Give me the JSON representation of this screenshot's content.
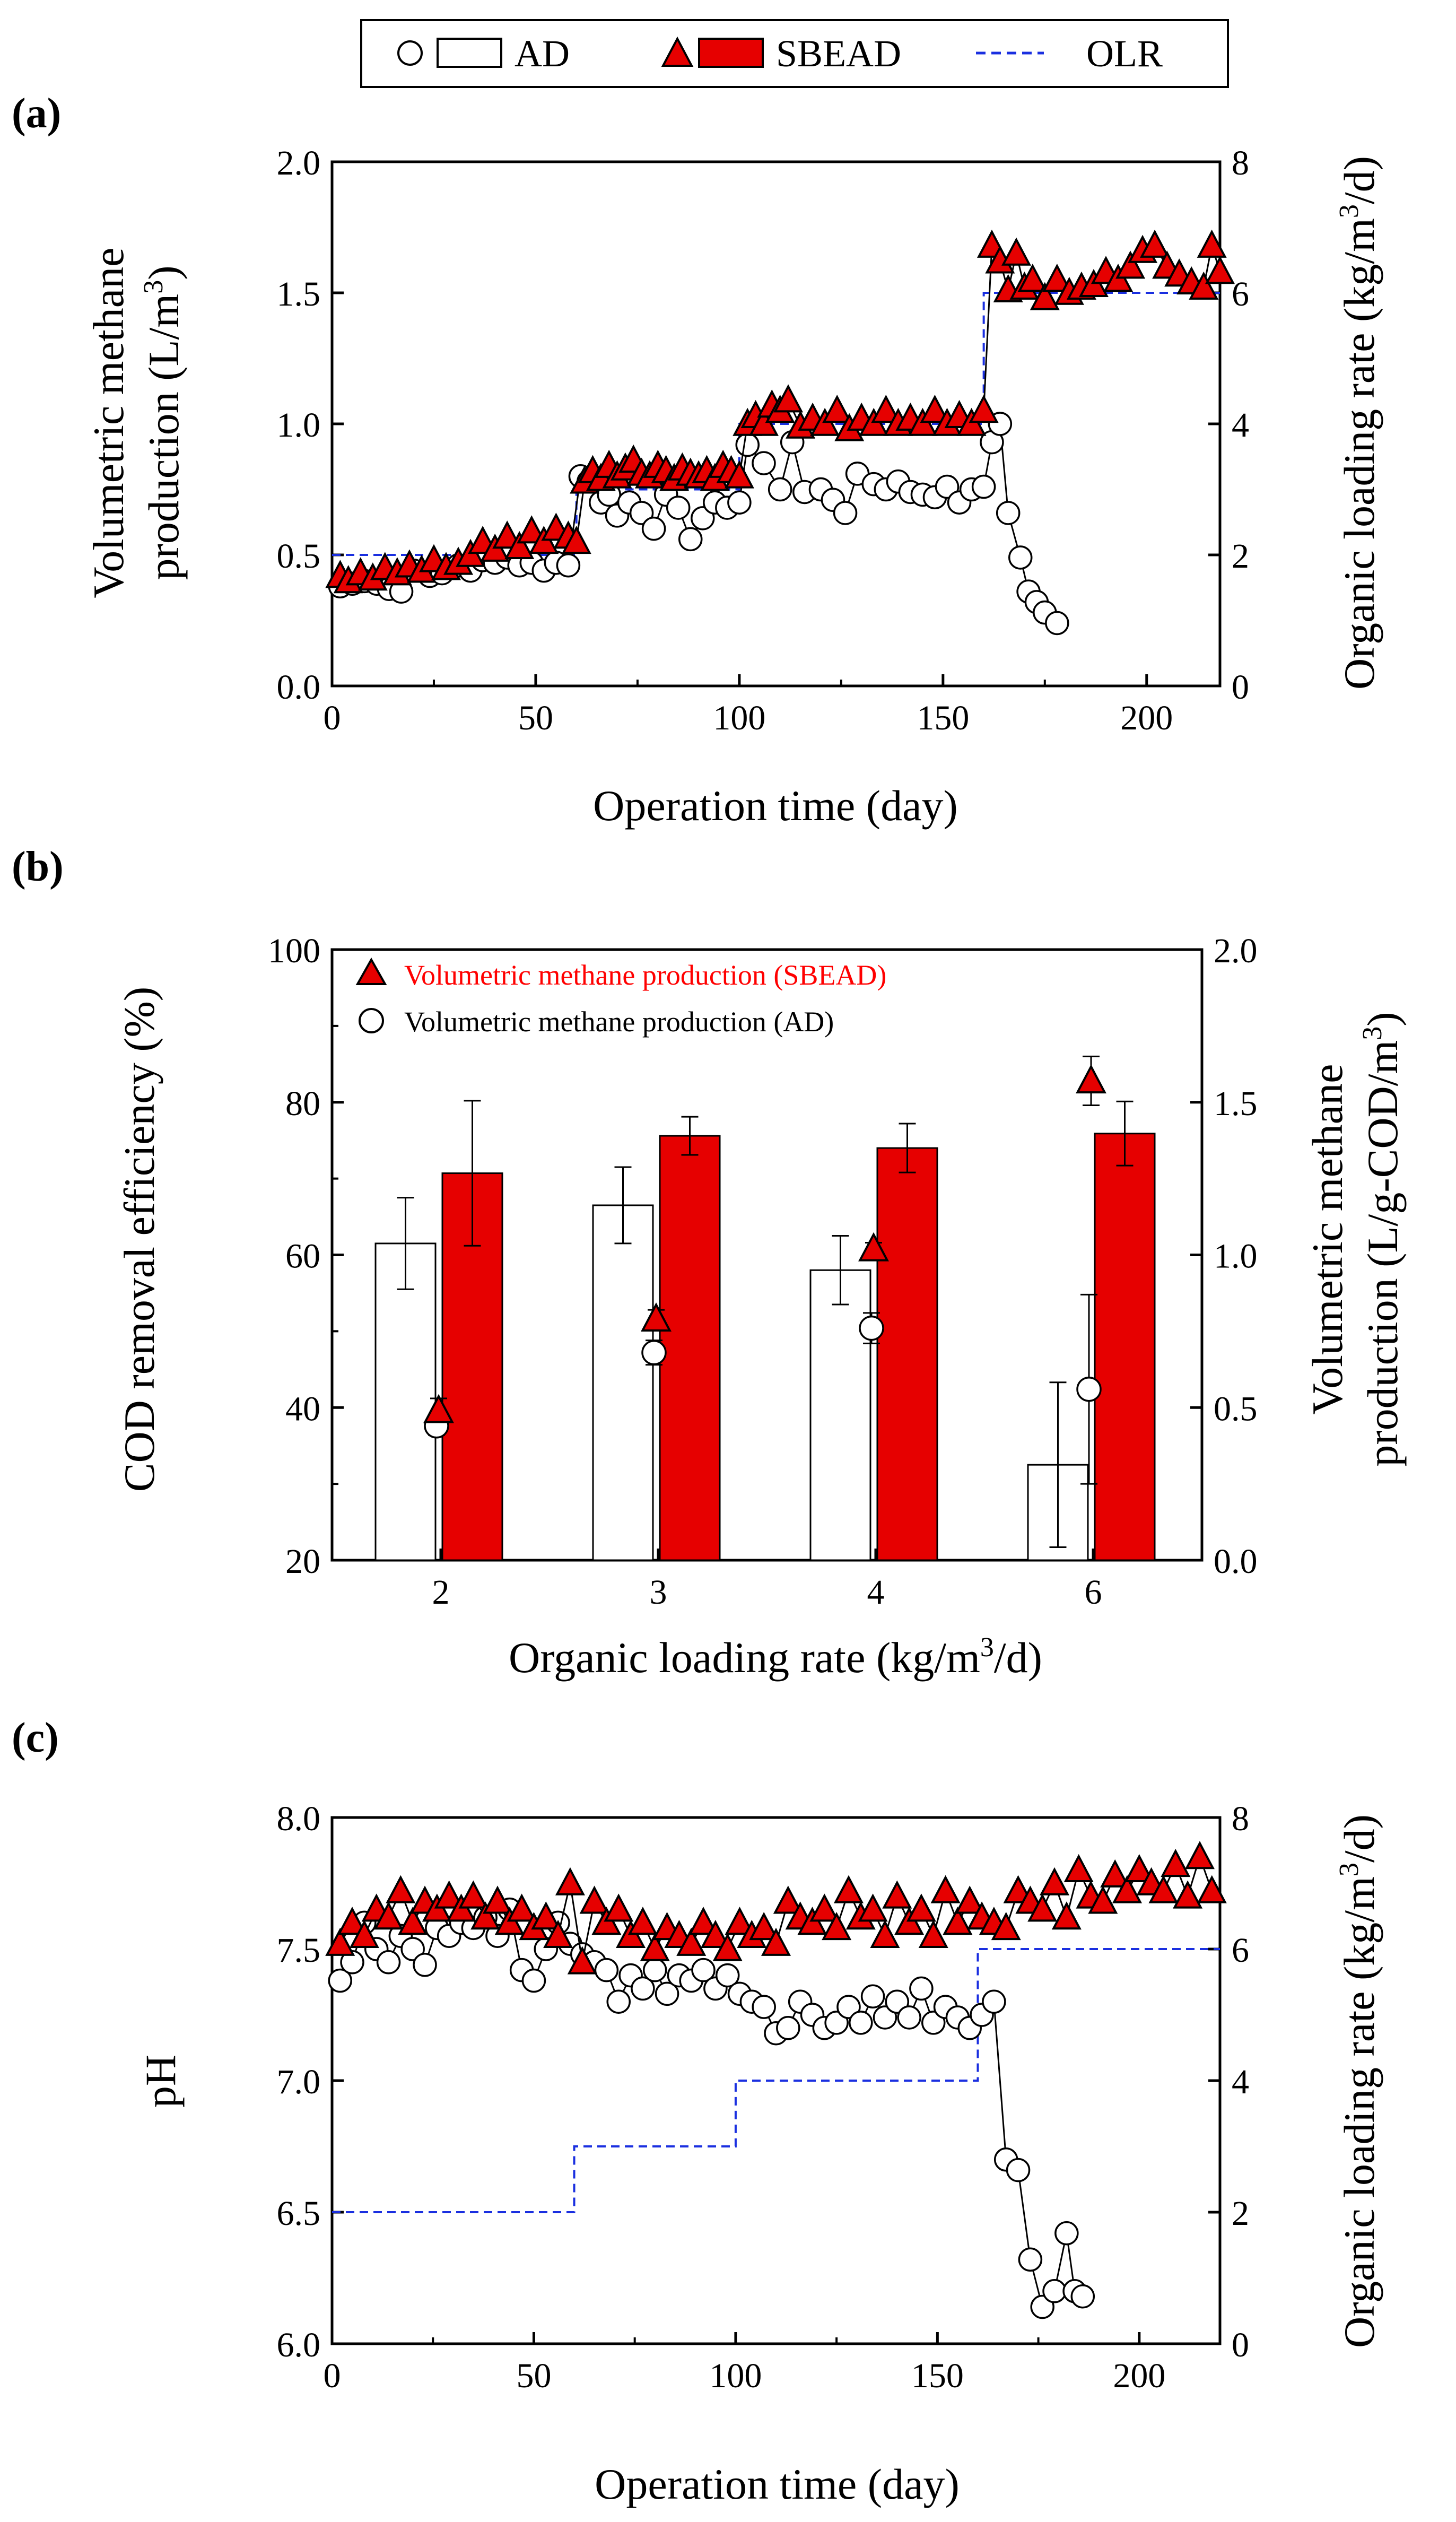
{
  "legend": {
    "ad_label": "AD",
    "sbead_label": "SBEAD",
    "olr_label": "OLR"
  },
  "colors": {
    "sbead_fill": "#e60000",
    "ad_fill": "#ffffff",
    "olr_line": "#1a2fe0",
    "axis": "#000000",
    "legend_b_red_text": "#ff0000"
  },
  "chart_data": [
    {
      "panel_label": "(a)",
      "type": "scatter",
      "xlabel": "Operation time (day)",
      "ylabel_line1": "Volumetric methane",
      "ylabel_line2": "production  (L/m",
      "ylabel_line2_sup": "3",
      "ylabel_line2_end": ")",
      "y2label": "Organic loading rate (kg/m",
      "y2label_sup": "3",
      "y2label_end": "/d)",
      "xlim": [
        0,
        218
      ],
      "ylim": [
        0,
        2.0
      ],
      "y2lim": [
        0,
        8
      ],
      "xticks": [
        0,
        50,
        100,
        150,
        200
      ],
      "xtick_labels": [
        "0",
        "50",
        "100",
        "150",
        "200"
      ],
      "yticks": [
        0,
        0.5,
        1.0,
        1.5,
        2.0
      ],
      "ytick_labels": [
        "0.0",
        "0.5",
        "1.0",
        "1.5",
        "2.0"
      ],
      "y2ticks": [
        0,
        2,
        4,
        6,
        8
      ],
      "y2tick_labels": [
        "0",
        "2",
        "4",
        "6",
        "8"
      ],
      "series": [
        {
          "name": "AD",
          "marker": "circle",
          "x": [
            2,
            5,
            8,
            11,
            14,
            17,
            20,
            24,
            27,
            31,
            34,
            37,
            40,
            43,
            46,
            49,
            52,
            55,
            58,
            61,
            63,
            66,
            68,
            70,
            73,
            76,
            79,
            82,
            85,
            88,
            91,
            94,
            97,
            100,
            102,
            106,
            110,
            113,
            116,
            120,
            123,
            126,
            129,
            133,
            136,
            139,
            142,
            145,
            148,
            151,
            154,
            157,
            160,
            162,
            164,
            166,
            169,
            171,
            173,
            175,
            178
          ],
          "y": [
            0.38,
            0.39,
            0.4,
            0.39,
            0.37,
            0.36,
            0.44,
            0.42,
            0.43,
            0.46,
            0.44,
            0.48,
            0.47,
            0.49,
            0.46,
            0.47,
            0.44,
            0.47,
            0.46,
            0.8,
            0.78,
            0.7,
            0.73,
            0.65,
            0.7,
            0.66,
            0.6,
            0.73,
            0.68,
            0.56,
            0.64,
            0.7,
            0.68,
            0.7,
            0.92,
            0.85,
            0.75,
            0.93,
            0.74,
            0.75,
            0.71,
            0.66,
            0.81,
            0.77,
            0.75,
            0.78,
            0.74,
            0.73,
            0.72,
            0.76,
            0.7,
            0.75,
            0.76,
            0.93,
            1.0,
            0.66,
            0.49,
            0.36,
            0.32,
            0.28,
            0.24
          ]
        },
        {
          "name": "SBEAD",
          "marker": "triangle",
          "x": [
            2,
            4,
            7,
            10,
            13,
            16,
            19,
            22,
            25,
            28,
            31,
            34,
            37,
            40,
            43,
            46,
            49,
            52,
            55,
            58,
            60,
            62,
            64,
            66,
            68,
            70,
            72,
            74,
            76,
            78,
            80,
            82,
            84,
            86,
            88,
            90,
            92,
            94,
            96,
            98,
            100,
            102,
            104,
            106,
            108,
            110,
            112,
            115,
            118,
            121,
            124,
            127,
            130,
            133,
            136,
            139,
            142,
            145,
            148,
            151,
            154,
            157,
            160,
            162,
            164,
            166,
            168,
            170,
            172,
            175,
            178,
            181,
            184,
            187,
            190,
            193,
            196,
            199,
            202,
            205,
            208,
            211,
            214,
            216,
            218
          ],
          "y": [
            0.42,
            0.4,
            0.43,
            0.41,
            0.45,
            0.43,
            0.46,
            0.44,
            0.48,
            0.45,
            0.47,
            0.5,
            0.55,
            0.52,
            0.57,
            0.53,
            0.59,
            0.55,
            0.6,
            0.57,
            0.55,
            0.78,
            0.82,
            0.79,
            0.84,
            0.8,
            0.83,
            0.86,
            0.81,
            0.8,
            0.84,
            0.82,
            0.79,
            0.83,
            0.81,
            0.8,
            0.82,
            0.79,
            0.84,
            0.82,
            0.8,
            1.0,
            1.03,
            1.0,
            1.07,
            1.05,
            1.09,
            0.99,
            1.02,
            1.0,
            1.05,
            0.98,
            1.02,
            1.0,
            1.05,
            1.0,
            1.02,
            1.0,
            1.05,
            1.0,
            1.03,
            1.0,
            1.05,
            1.68,
            1.62,
            1.51,
            1.65,
            1.52,
            1.55,
            1.48,
            1.55,
            1.5,
            1.52,
            1.53,
            1.58,
            1.55,
            1.6,
            1.66,
            1.68,
            1.6,
            1.57,
            1.54,
            1.52,
            1.68,
            1.58
          ]
        },
        {
          "name": "OLR",
          "axis": "y2",
          "x": [
            0,
            60,
            60,
            100,
            100,
            160,
            160,
            218
          ],
          "y": [
            2,
            2,
            3,
            3,
            4,
            4,
            6,
            6
          ]
        }
      ]
    },
    {
      "panel_label": "(b)",
      "type": "bar",
      "xlabel": "Organic loading rate (kg/m",
      "xlabel_sup": "3",
      "xlabel_end": "/d)",
      "ylabel": "COD removal efficiency (%)",
      "y2label_line1": "Volumetric methane",
      "y2label_line2": "production  (L/g-COD/m",
      "y2label_line2_sup": "3",
      "y2label_line2_end": ")",
      "categories": [
        "2",
        "3",
        "4",
        "6"
      ],
      "ylim": [
        20,
        100
      ],
      "y2lim": [
        0,
        2.0
      ],
      "yticks": [
        20,
        40,
        60,
        80,
        100
      ],
      "ytick_labels": [
        "20",
        "40",
        "60",
        "80",
        "100"
      ],
      "y2ticks": [
        0,
        0.5,
        1.0,
        1.5,
        2.0
      ],
      "y2tick_labels": [
        "0.0",
        "0.5",
        "1.0",
        "1.5",
        "2.0"
      ],
      "legend_entries": [
        "Volumetric methane production (SBEAD)",
        "Volumetric methane production (AD)"
      ],
      "series": [
        {
          "name": "AD",
          "values": [
            61.5,
            66.5,
            58.0,
            32.5
          ],
          "errors": [
            6.0,
            5.0,
            4.5,
            10.8
          ]
        },
        {
          "name": "SBEAD",
          "values": [
            70.7,
            75.6,
            74.0,
            75.9
          ],
          "errors": [
            9.5,
            2.5,
            3.2,
            4.2
          ]
        },
        {
          "name": "Volumetric methane production (SBEAD)",
          "axis": "y2",
          "values": [
            0.49,
            0.79,
            1.02,
            1.57
          ],
          "errors": [
            0.04,
            0.03,
            0.02,
            0.08
          ]
        },
        {
          "name": "Volumetric methane production (AD)",
          "axis": "y2",
          "values": [
            0.44,
            0.68,
            0.76,
            0.56
          ],
          "errors": [
            0.03,
            0.04,
            0.05,
            0.31
          ]
        }
      ]
    },
    {
      "panel_label": "(c)",
      "type": "scatter",
      "xlabel": "Operation time (day)",
      "ylabel": "pH",
      "y2label": "Organic loading rate (kg/m",
      "y2label_sup": "3",
      "y2label_end": "/d)",
      "xlim": [
        0,
        220
      ],
      "ylim": [
        6.0,
        8.0
      ],
      "y2lim": [
        0,
        8
      ],
      "xticks": [
        0,
        50,
        100,
        150,
        200
      ],
      "xtick_labels": [
        "0",
        "50",
        "100",
        "150",
        "200"
      ],
      "yticks": [
        6.0,
        6.5,
        7.0,
        7.5,
        8.0
      ],
      "ytick_labels": [
        "6.0",
        "6.5",
        "7.0",
        "7.5",
        "8.0"
      ],
      "y2ticks": [
        0,
        2,
        4,
        6,
        8
      ],
      "y2tick_labels": [
        "0",
        "2",
        "4",
        "6",
        "8"
      ],
      "series": [
        {
          "name": "AD",
          "marker": "circle",
          "x": [
            2,
            5,
            8,
            11,
            14,
            17,
            20,
            23,
            26,
            29,
            32,
            35,
            38,
            41,
            44,
            47,
            50,
            53,
            56,
            59,
            62,
            65,
            68,
            71,
            74,
            77,
            80,
            83,
            86,
            89,
            92,
            95,
            98,
            101,
            104,
            107,
            110,
            113,
            116,
            119,
            122,
            125,
            128,
            131,
            134,
            137,
            140,
            143,
            146,
            149,
            152,
            155,
            158,
            161,
            164,
            167,
            170,
            173,
            176,
            179,
            182,
            184,
            186
          ],
          "y": [
            7.38,
            7.45,
            7.6,
            7.5,
            7.45,
            7.55,
            7.5,
            7.44,
            7.58,
            7.55,
            7.6,
            7.58,
            7.62,
            7.55,
            7.65,
            7.42,
            7.38,
            7.5,
            7.6,
            7.52,
            7.48,
            7.45,
            7.42,
            7.3,
            7.4,
            7.35,
            7.42,
            7.33,
            7.4,
            7.38,
            7.42,
            7.35,
            7.4,
            7.33,
            7.3,
            7.28,
            7.18,
            7.2,
            7.3,
            7.25,
            7.2,
            7.22,
            7.28,
            7.22,
            7.32,
            7.24,
            7.3,
            7.24,
            7.35,
            7.22,
            7.28,
            7.24,
            7.2,
            7.25,
            7.3,
            6.7,
            6.66,
            6.32,
            6.14,
            6.2,
            6.42,
            6.2,
            6.18
          ]
        },
        {
          "name": "SBEAD",
          "marker": "triangle",
          "x": [
            2,
            5,
            8,
            11,
            14,
            17,
            20,
            23,
            26,
            29,
            32,
            35,
            38,
            41,
            44,
            47,
            50,
            53,
            56,
            59,
            62,
            65,
            68,
            71,
            74,
            77,
            80,
            83,
            86,
            89,
            92,
            95,
            98,
            101,
            104,
            107,
            110,
            113,
            116,
            119,
            122,
            125,
            128,
            131,
            134,
            137,
            140,
            143,
            146,
            149,
            152,
            155,
            158,
            161,
            164,
            167,
            170,
            173,
            176,
            179,
            182,
            185,
            188,
            191,
            194,
            197,
            200,
            203,
            206,
            209,
            212,
            215,
            218
          ],
          "y": [
            7.52,
            7.6,
            7.55,
            7.65,
            7.62,
            7.72,
            7.6,
            7.68,
            7.65,
            7.7,
            7.65,
            7.7,
            7.62,
            7.68,
            7.6,
            7.65,
            7.58,
            7.62,
            7.55,
            7.75,
            7.45,
            7.68,
            7.6,
            7.65,
            7.55,
            7.6,
            7.5,
            7.58,
            7.55,
            7.52,
            7.6,
            7.55,
            7.5,
            7.6,
            7.55,
            7.58,
            7.52,
            7.68,
            7.62,
            7.6,
            7.65,
            7.58,
            7.72,
            7.62,
            7.65,
            7.55,
            7.7,
            7.6,
            7.65,
            7.55,
            7.72,
            7.6,
            7.68,
            7.62,
            7.6,
            7.58,
            7.72,
            7.68,
            7.65,
            7.75,
            7.62,
            7.8,
            7.7,
            7.68,
            7.78,
            7.72,
            7.8,
            7.75,
            7.72,
            7.82,
            7.7,
            7.85,
            7.72
          ]
        },
        {
          "name": "OLR",
          "axis": "y2",
          "x": [
            0,
            60,
            60,
            100,
            100,
            160,
            160,
            220
          ],
          "y": [
            2,
            2,
            3,
            3,
            4,
            4,
            6,
            6
          ]
        }
      ]
    }
  ]
}
